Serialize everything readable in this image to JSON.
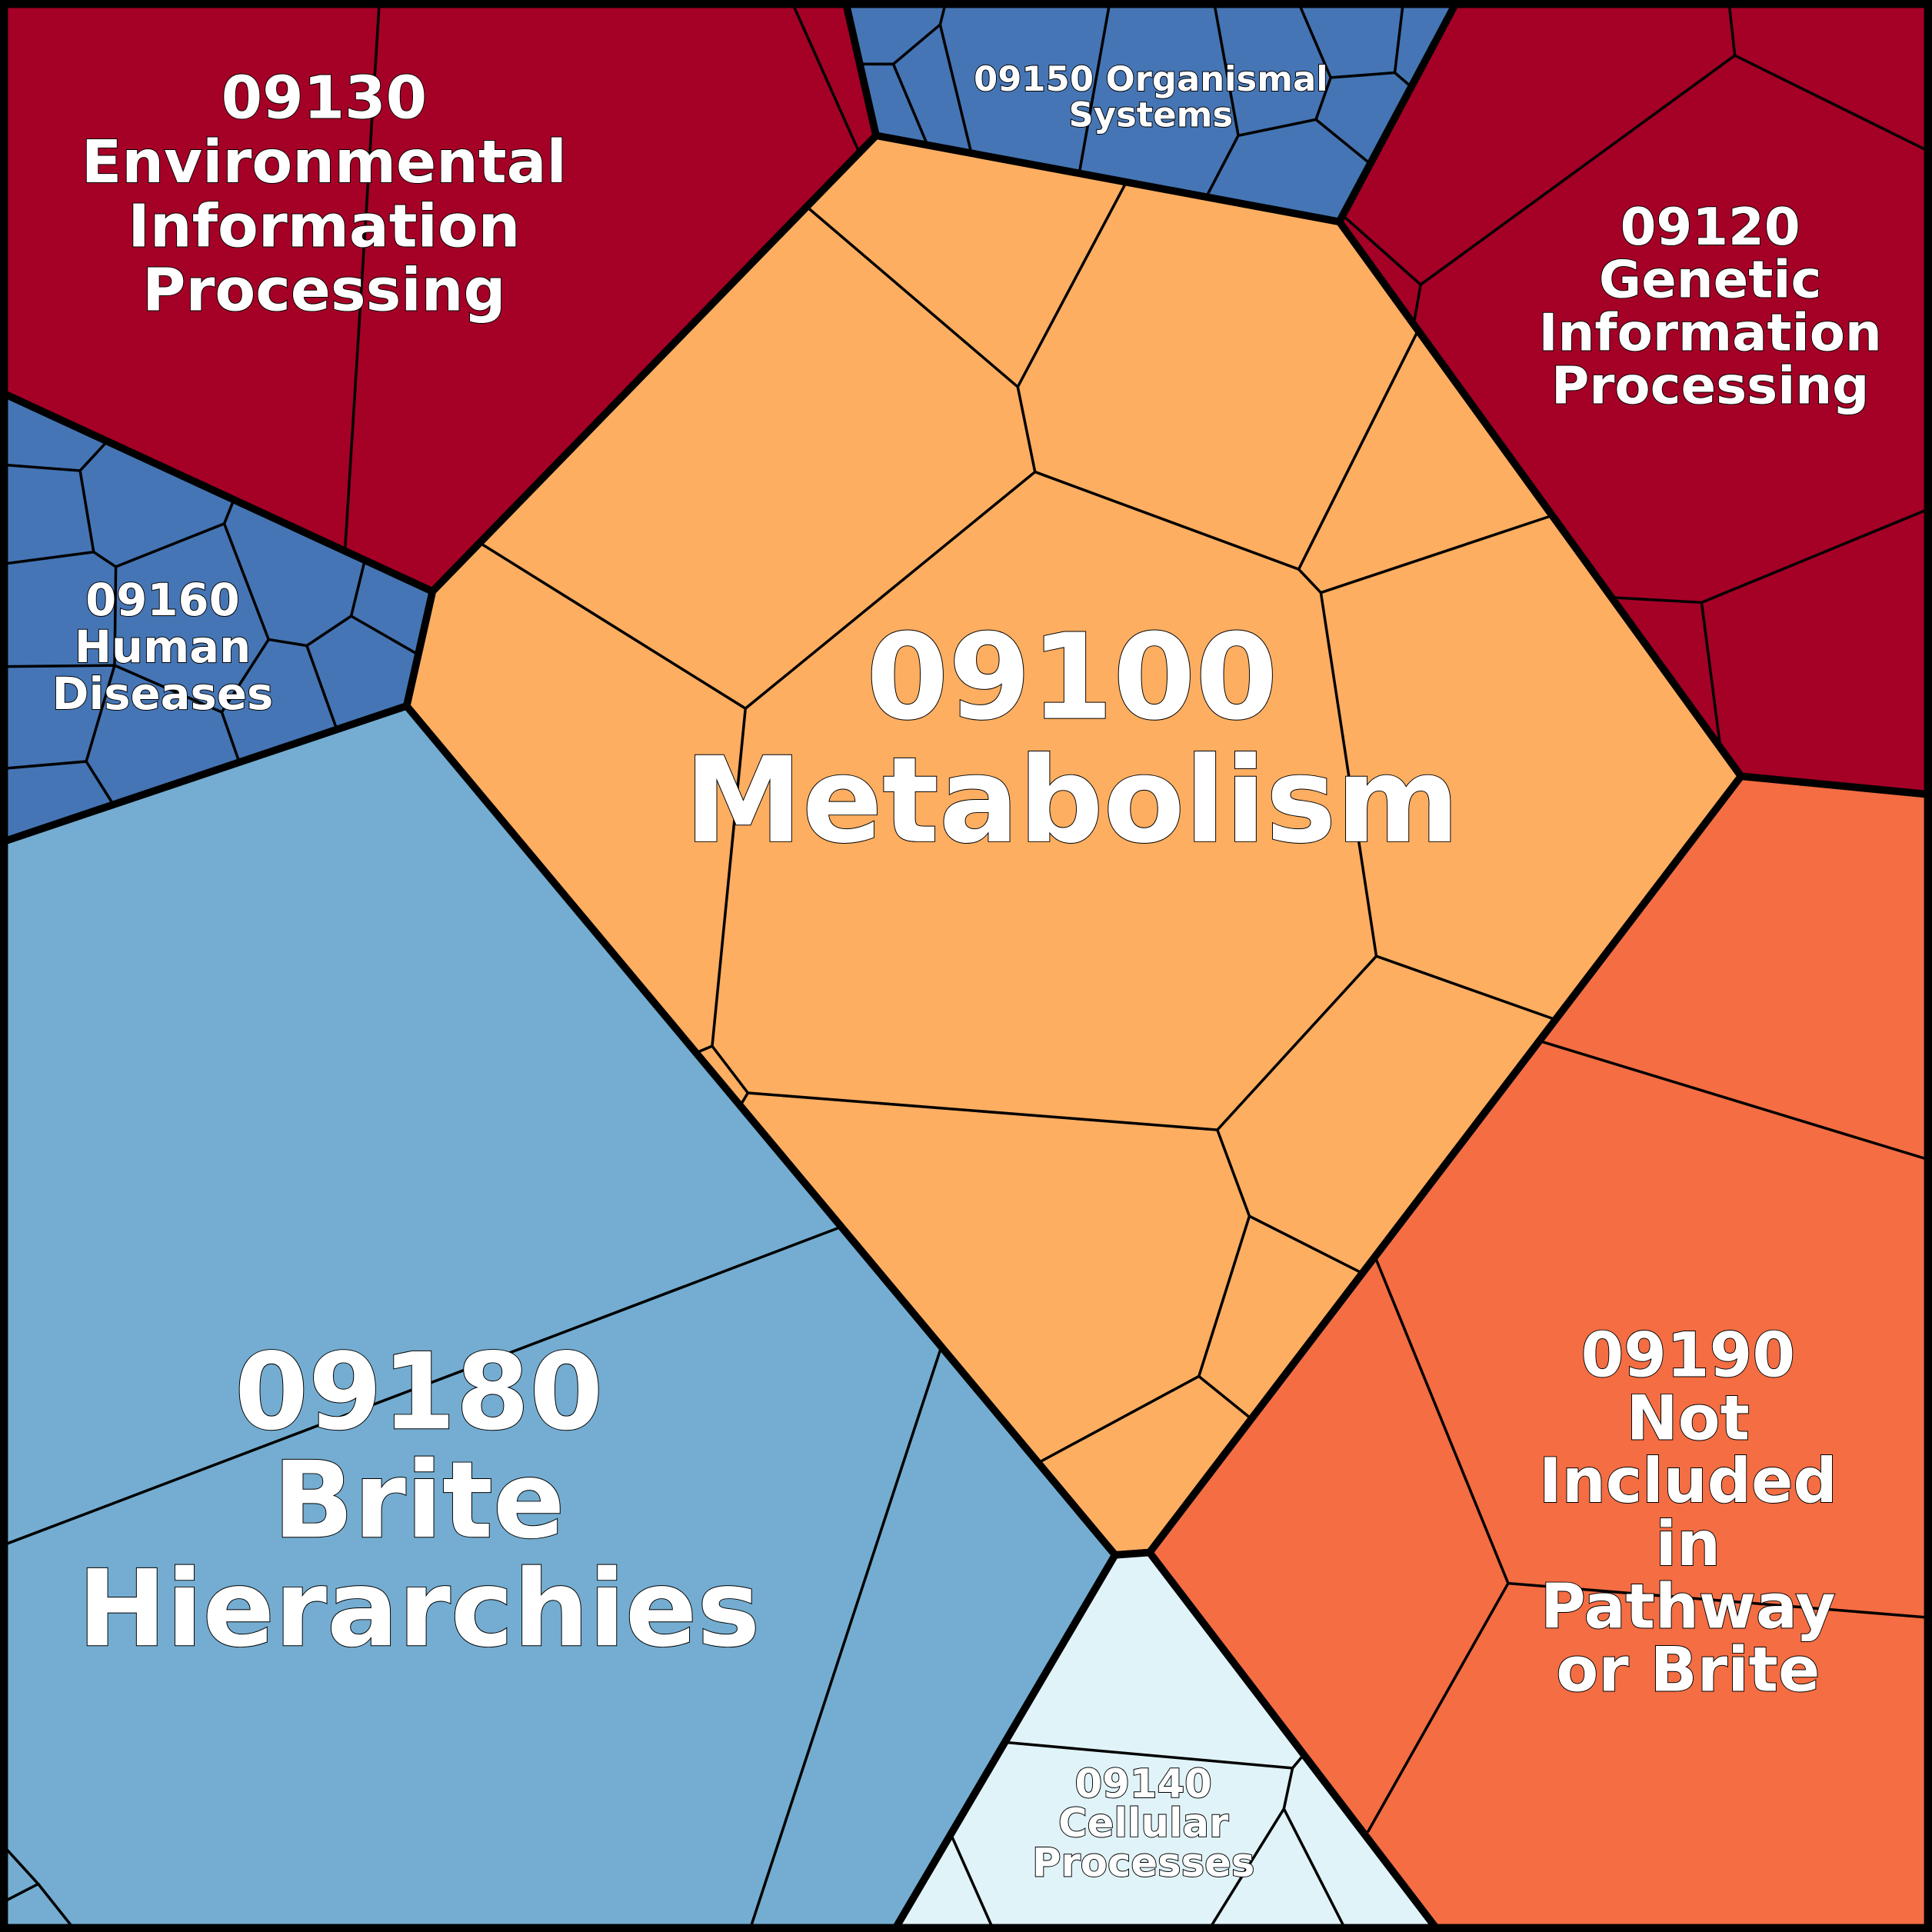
{
  "colors": {
    "metabolism": "#fdae61",
    "genetic": "#a50026",
    "environmental": "#a50026",
    "cellular": "#e0f3f8",
    "organismal": "#4575b4",
    "human": "#4575b4",
    "brite": "#74add1",
    "not_included": "#f46d43"
  },
  "categories": {
    "metabolism": {
      "lines": [
        "09100",
        "Metabolism"
      ]
    },
    "genetic": {
      "lines": [
        "09120",
        "Genetic",
        "Information",
        "Processing"
      ]
    },
    "environmental": {
      "lines": [
        "09130",
        "Environmental",
        "Information",
        "Processing"
      ]
    },
    "cellular": {
      "lines": [
        "09140",
        "Cellular",
        "Processes"
      ]
    },
    "organismal": {
      "lines": [
        "09150 Organismal",
        "Systems"
      ]
    },
    "human": {
      "lines": [
        "09160",
        "Human",
        "Diseases"
      ]
    },
    "brite": {
      "lines": [
        "09180",
        "Brite",
        "Hierarchies"
      ]
    },
    "not_included": {
      "lines": [
        "09190",
        "Not",
        "Included",
        "in",
        "Pathway",
        "or Brite"
      ]
    }
  }
}
